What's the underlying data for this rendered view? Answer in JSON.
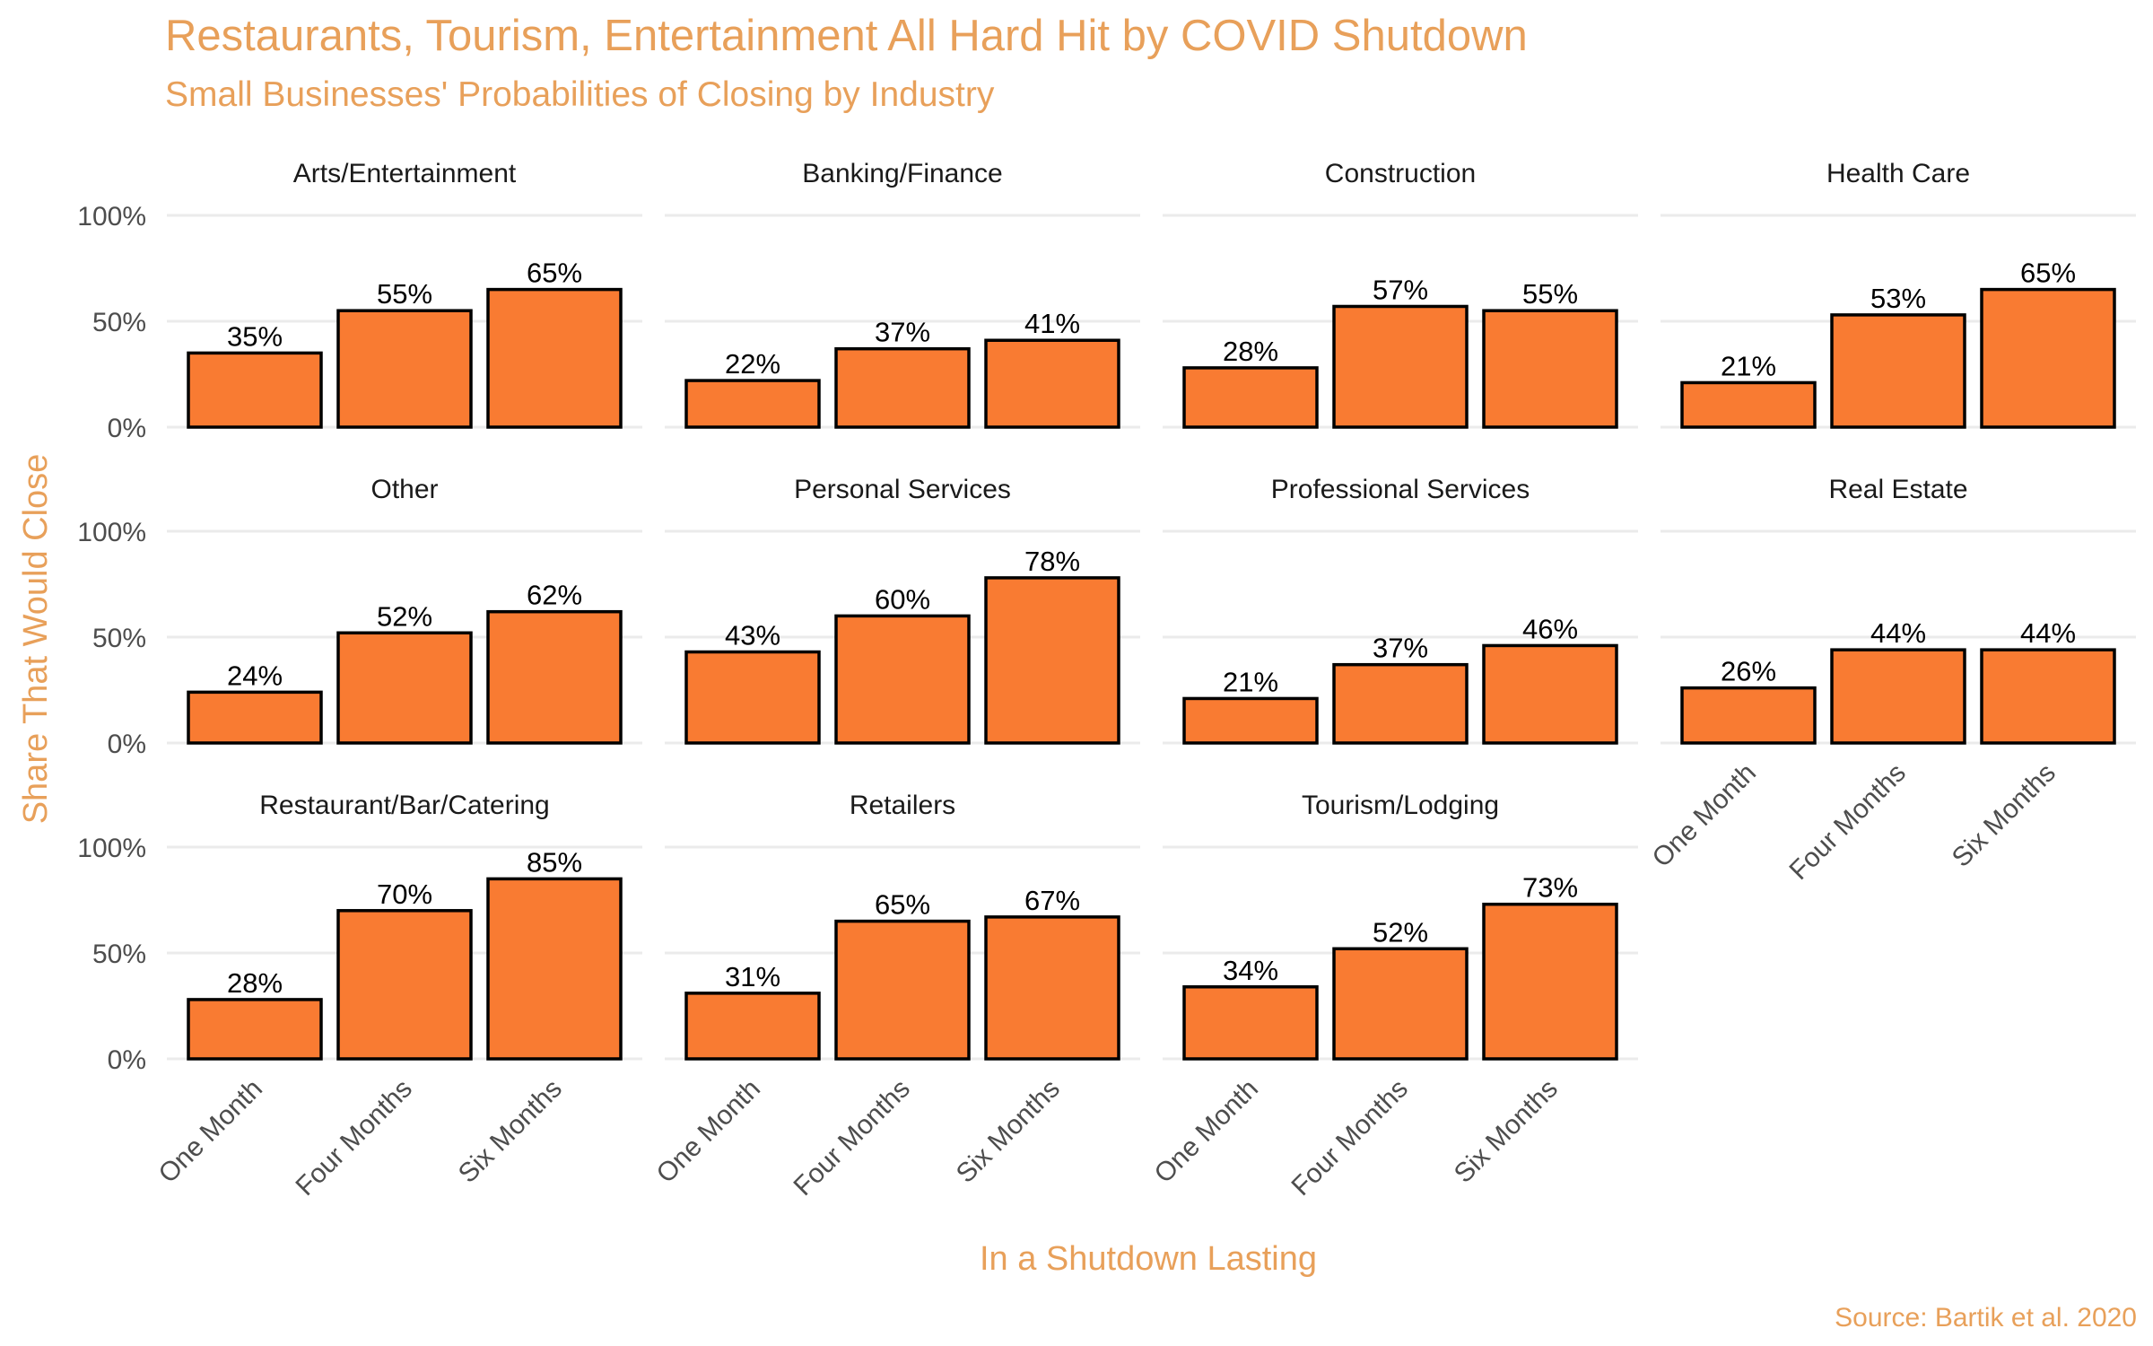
{
  "title": "Restaurants, Tourism, Entertainment All Hard Hit by COVID Shutdown",
  "subtitle": "Small Businesses' Probabilities of Closing by Industry",
  "caption": "Source: Bartik et al. 2020",
  "colors": {
    "accent": "#E8A05A",
    "bar_fill": "#F97B32",
    "bar_stroke": "#000000",
    "grid": "#EBEBEB",
    "text": "#4D4D4D"
  },
  "chart_data": {
    "type": "bar",
    "xlabel": "In a Shutdown Lasting",
    "ylabel": "Share That Would Close",
    "ylim": [
      0,
      100
    ],
    "y_ticks": [
      "0%",
      "50%",
      "100%"
    ],
    "categories": [
      "One Month",
      "Four Months",
      "Six Months"
    ],
    "grid": true,
    "panels": [
      {
        "name": "Arts/Entertainment",
        "values": [
          35,
          55,
          65
        ]
      },
      {
        "name": "Banking/Finance",
        "values": [
          22,
          37,
          41
        ]
      },
      {
        "name": "Construction",
        "values": [
          28,
          57,
          55
        ]
      },
      {
        "name": "Health Care",
        "values": [
          21,
          53,
          65
        ]
      },
      {
        "name": "Other",
        "values": [
          24,
          52,
          62
        ]
      },
      {
        "name": "Personal Services",
        "values": [
          43,
          60,
          78
        ]
      },
      {
        "name": "Professional Services",
        "values": [
          21,
          37,
          46
        ]
      },
      {
        "name": "Real Estate",
        "values": [
          26,
          44,
          44
        ]
      },
      {
        "name": "Restaurant/Bar/Catering",
        "values": [
          28,
          70,
          85
        ]
      },
      {
        "name": "Retailers",
        "values": [
          31,
          65,
          67
        ]
      },
      {
        "name": "Tourism/Lodging",
        "values": [
          34,
          52,
          73
        ]
      }
    ]
  }
}
